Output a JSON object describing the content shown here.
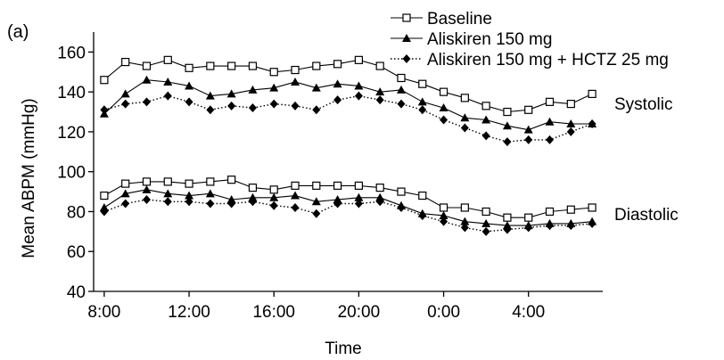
{
  "chart_data": {
    "type": "line",
    "panel_label": "(a)",
    "xlabel": "Time",
    "ylabel": "Mean ABPM (mmHg)",
    "ylim": [
      40,
      170
    ],
    "yticks": [
      40,
      60,
      80,
      100,
      120,
      140,
      160
    ],
    "xlim": [
      7.5,
      31.5
    ],
    "xticks": [
      {
        "value": 8,
        "label": "8:00"
      },
      {
        "value": 12,
        "label": "12:00"
      },
      {
        "value": 16,
        "label": "16:00"
      },
      {
        "value": 20,
        "label": "20:00"
      },
      {
        "value": 24,
        "label": "0:00"
      },
      {
        "value": 28,
        "label": "4:00"
      }
    ],
    "grid": false,
    "legend_position": "top-right",
    "annotations": [
      {
        "text": "Systolic",
        "group": "systolic"
      },
      {
        "text": "Diastolic",
        "group": "diastolic"
      }
    ],
    "x": [
      8,
      9,
      10,
      11,
      12,
      13,
      14,
      15,
      16,
      17,
      18,
      19,
      20,
      21,
      22,
      23,
      24,
      25,
      26,
      27,
      28,
      29,
      30,
      31
    ],
    "series": [
      {
        "name": "Baseline",
        "marker": "open-square",
        "line": "solid",
        "systolic": [
          146,
          155,
          153,
          156,
          152,
          153,
          153,
          153,
          150,
          151,
          153,
          154,
          156,
          153,
          147,
          144,
          140,
          137,
          133,
          130,
          131,
          135,
          134,
          139
        ],
        "diastolic": [
          88,
          94,
          95,
          95,
          94,
          95,
          96,
          92,
          91,
          93,
          93,
          93,
          93,
          92,
          90,
          88,
          82,
          82,
          80,
          77,
          77,
          80,
          81,
          82
        ]
      },
      {
        "name": "Aliskiren 150 mg",
        "marker": "filled-triangle",
        "line": "solid",
        "systolic": [
          129,
          139,
          146,
          145,
          143,
          138,
          139,
          141,
          142,
          145,
          142,
          144,
          143,
          140,
          141,
          135,
          132,
          127,
          126,
          123,
          121,
          125,
          124,
          124
        ],
        "diastolic": [
          82,
          89,
          91,
          89,
          88,
          89,
          86,
          87,
          87,
          88,
          85,
          86,
          87,
          87,
          83,
          79,
          78,
          75,
          74,
          73,
          73,
          74,
          74,
          75
        ]
      },
      {
        "name": "Aliskiren 150 mg + HCTZ 25 mg",
        "marker": "filled-diamond",
        "line": "dotted",
        "systolic": [
          131,
          134,
          135,
          138,
          135,
          131,
          133,
          132,
          134,
          133,
          131,
          136,
          138,
          136,
          134,
          131,
          126,
          122,
          118,
          115,
          116,
          116,
          120,
          124
        ],
        "diastolic": [
          80,
          84,
          86,
          85,
          85,
          84,
          84,
          85,
          83,
          82,
          79,
          84,
          84,
          85,
          82,
          78,
          75,
          72,
          70,
          71,
          72,
          73,
          73,
          74
        ]
      }
    ]
  }
}
